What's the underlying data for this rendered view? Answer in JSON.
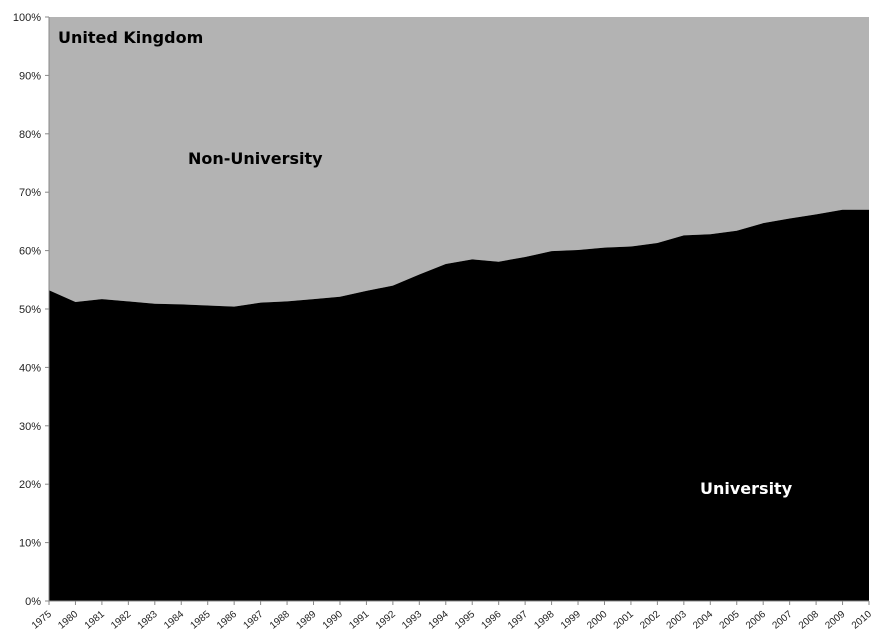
{
  "chart_data": {
    "type": "area",
    "title": "United Kingdom",
    "xlabel": "",
    "ylabel": "",
    "ylim": [
      0,
      100
    ],
    "yticks": [
      "0%",
      "10%",
      "20%",
      "30%",
      "40%",
      "50%",
      "60%",
      "70%",
      "80%",
      "90%",
      "100%"
    ],
    "stacked_percent": true,
    "categories": [
      "1975",
      "1980",
      "1981",
      "1982",
      "1983",
      "1984",
      "1985",
      "1986",
      "1987",
      "1988",
      "1989",
      "1990",
      "1991",
      "1992",
      "1993",
      "1994",
      "1995",
      "1996",
      "1997",
      "1998",
      "1999",
      "2000",
      "2001",
      "2002",
      "2003",
      "2004",
      "2005",
      "2006",
      "2007",
      "2008",
      "2009",
      "2010"
    ],
    "series": [
      {
        "name": "University",
        "color": "#000000",
        "values": [
          53.2,
          51.2,
          51.7,
          51.3,
          50.9,
          50.8,
          50.6,
          50.4,
          51.1,
          51.3,
          51.7,
          52.1,
          53.1,
          54.0,
          55.9,
          57.7,
          58.5,
          58.1,
          58.9,
          59.9,
          60.1,
          60.5,
          60.7,
          61.3,
          62.6,
          62.8,
          63.4,
          64.7,
          65.5,
          66.2,
          67.0,
          67.0
        ]
      },
      {
        "name": "Non-University",
        "color": "#b3b3b3",
        "values": [
          46.8,
          48.8,
          48.3,
          48.7,
          49.1,
          49.2,
          49.4,
          49.6,
          48.9,
          48.7,
          48.3,
          47.9,
          46.9,
          46.0,
          44.1,
          42.3,
          41.5,
          41.9,
          41.1,
          40.1,
          39.9,
          39.5,
          39.3,
          38.7,
          37.4,
          37.2,
          36.6,
          35.3,
          34.5,
          33.8,
          33.0,
          33.0
        ]
      }
    ],
    "grid": false,
    "legend": "none"
  }
}
